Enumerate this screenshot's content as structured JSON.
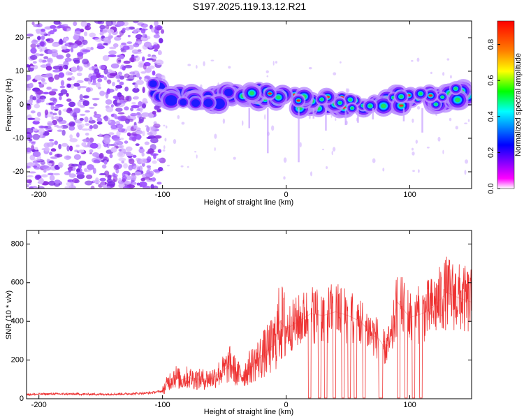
{
  "title": "S197.2025.119.13.12.R21",
  "colors": {
    "snr_line": "#ee3333",
    "axis": "#000000",
    "spectrogram_noise": "#8a2be2"
  },
  "chart_data": [
    {
      "type": "heatmap",
      "xlabel": "Height of straight line (km)",
      "ylabel": "Frequency (Hz)",
      "xlim": [
        -210,
        150
      ],
      "ylim": [
        -25,
        25
      ],
      "x_ticks": [
        -200,
        -100,
        0,
        100
      ],
      "y_ticks": [
        -20,
        -10,
        0,
        10,
        20
      ],
      "colorbar": {
        "label": "Normalized spectral amplitude",
        "range": [
          0,
          0.93
        ],
        "ticks": [
          0.0,
          0.2,
          0.4,
          0.6,
          0.8
        ]
      },
      "signal_track": {
        "x": [
          -110,
          -100,
          -80,
          -60,
          -40,
          -20,
          0,
          20,
          40,
          60,
          80,
          100,
          120,
          140,
          150
        ],
        "frequency": [
          5,
          3,
          2,
          1,
          4,
          3,
          2,
          0,
          1,
          0,
          1,
          2,
          2,
          3,
          2
        ]
      },
      "noise_region_x": [
        -210,
        -100
      ]
    },
    {
      "type": "line",
      "xlabel": "Height of straight line (km)",
      "ylabel": "SNR (10 * v/v)",
      "xlim": [
        -210,
        150
      ],
      "ylim": [
        0,
        870
      ],
      "x_ticks": [
        -200,
        -100,
        0,
        100
      ],
      "y_ticks": [
        0,
        200,
        400,
        600,
        800
      ],
      "series": [
        {
          "x": [
            -210,
            -190,
            -170,
            -150,
            -130,
            -110,
            -100,
            -95,
            -90,
            -85,
            -80,
            -70,
            -60,
            -50,
            -45,
            -40,
            -35,
            -30,
            -20,
            -10,
            -5,
            0,
            10,
            20,
            30,
            40,
            50,
            60,
            70,
            75,
            80,
            85,
            90,
            100,
            110,
            120,
            130,
            140,
            150
          ],
          "y": [
            22,
            25,
            24,
            23,
            25,
            30,
            40,
            90,
            120,
            95,
            110,
            100,
            105,
            150,
            180,
            130,
            120,
            160,
            220,
            280,
            400,
            360,
            400,
            440,
            430,
            450,
            430,
            400,
            330,
            310,
            260,
            300,
            500,
            420,
            440,
            480,
            550,
            520,
            500
          ]
        }
      ]
    }
  ]
}
